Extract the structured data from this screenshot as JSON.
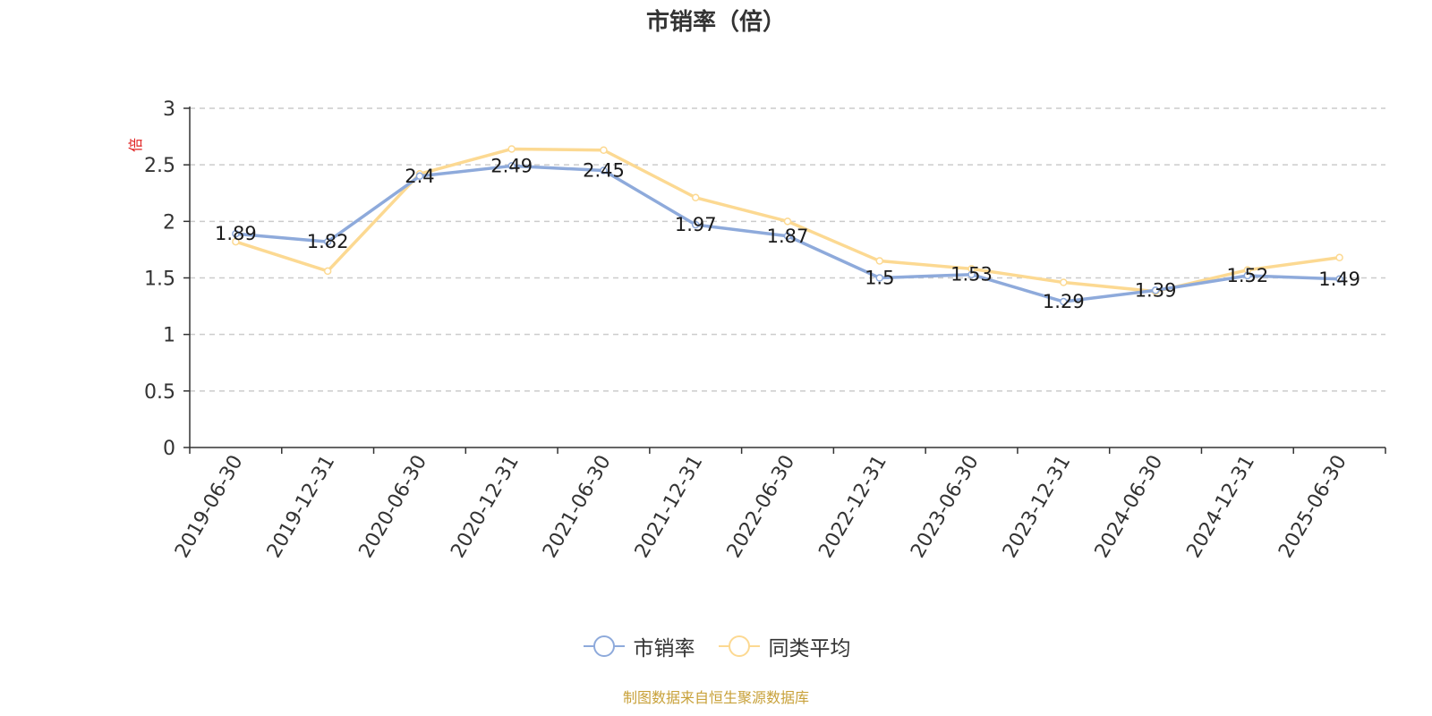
{
  "chart_data": {
    "type": "line",
    "title": "市销率（倍）",
    "ylabel": "倍",
    "x": [
      "2019-06-30",
      "2019-12-31",
      "2020-06-30",
      "2020-12-31",
      "2021-06-30",
      "2021-12-31",
      "2022-06-30",
      "2022-12-31",
      "2023-06-30",
      "2023-12-31",
      "2024-06-30",
      "2024-12-31",
      "2025-06-30"
    ],
    "series": [
      {
        "name": "市销率",
        "color": "#8eaadb",
        "values": [
          1.89,
          1.82,
          2.4,
          2.49,
          2.45,
          1.97,
          1.87,
          1.5,
          1.53,
          1.29,
          1.39,
          1.52,
          1.49
        ],
        "labels": [
          "1.89",
          "1.82",
          "2.4",
          "2.49",
          "2.45",
          "1.97",
          "1.87",
          "1.5",
          "1.53",
          "1.29",
          "1.39",
          "1.52",
          "1.49"
        ]
      },
      {
        "name": "同类平均",
        "color": "#fcd992",
        "values": [
          1.82,
          1.56,
          2.42,
          2.64,
          2.63,
          2.21,
          2.0,
          1.65,
          1.58,
          1.46,
          1.38,
          1.57,
          1.68
        ]
      }
    ],
    "yticks": [
      "0",
      "0.5",
      "1",
      "1.5",
      "2",
      "2.5",
      "3"
    ],
    "ylim": [
      0,
      3
    ],
    "grid": true,
    "legend_position": "bottom"
  },
  "source_note": "制图数据来自恒生聚源数据库"
}
